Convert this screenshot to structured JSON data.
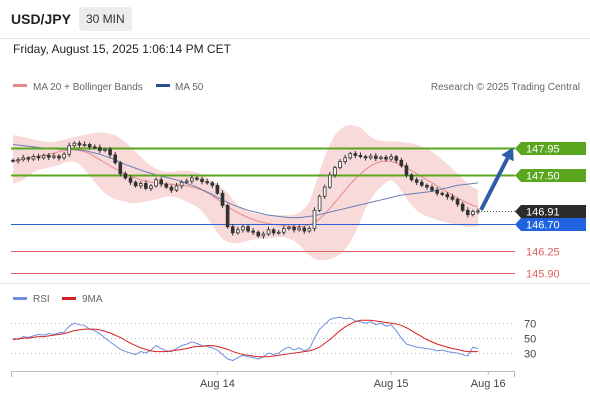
{
  "header": {
    "pair": "USD/JPY",
    "timeframe": "30 MIN",
    "datetime": "Friday, August 15, 2025 1:06:14 PM CET"
  },
  "legend": {
    "bollinger_label": "MA 20 + Bollinger Bands",
    "ma50_label": "MA 50",
    "copyright": "Research © 2025 Trading Central",
    "rsi_label": "RSI",
    "rsi_ma_label": "9MA"
  },
  "colors": {
    "up_level": "#5aa61e",
    "pivot": "#2b5fd6",
    "support": "#e06060",
    "candle": "#333333",
    "ma20": "#e88a8a",
    "band_fill": "#f8d3d3",
    "ma50": "#6a7fb3",
    "arrow": "#2f5ea8",
    "rsi": "#6f8ee0",
    "rsi_ma": "#d42020"
  },
  "chart_data": [
    {
      "type": "candlestick",
      "ylim": [
        145.7,
        148.4
      ],
      "price_levels": [
        {
          "value": 147.95,
          "label": "147.95",
          "kind": "resistance"
        },
        {
          "value": 147.5,
          "label": "147.50",
          "kind": "resistance"
        },
        {
          "value": 146.91,
          "label": "146.91",
          "kind": "last"
        },
        {
          "value": 146.7,
          "label": "146.70",
          "kind": "pivot"
        },
        {
          "value": 146.25,
          "label": "146.25",
          "kind": "support"
        },
        {
          "value": 145.9,
          "label": "145.90",
          "kind": "support"
        }
      ],
      "x_ticks": [
        "Aug 14",
        "Aug 15",
        "Aug 16"
      ],
      "x_tick_index": [
        40,
        74,
        93
      ],
      "close": [
        147.73,
        147.75,
        147.78,
        147.76,
        147.8,
        147.78,
        147.82,
        147.79,
        147.81,
        147.78,
        147.84,
        147.98,
        148.02,
        147.99,
        148.0,
        147.96,
        147.95,
        147.9,
        147.92,
        147.83,
        147.7,
        147.52,
        147.45,
        147.38,
        147.32,
        147.36,
        147.28,
        147.32,
        147.42,
        147.35,
        147.3,
        147.25,
        147.32,
        147.38,
        147.4,
        147.45,
        147.43,
        147.39,
        147.37,
        147.33,
        147.2,
        147.0,
        146.65,
        146.55,
        146.6,
        146.65,
        146.58,
        146.56,
        146.5,
        146.53,
        146.6,
        146.55,
        146.56,
        146.62,
        146.64,
        146.6,
        146.63,
        146.58,
        146.62,
        146.92,
        147.15,
        147.3,
        147.5,
        147.62,
        147.72,
        147.78,
        147.85,
        147.82,
        147.8,
        147.78,
        147.81,
        147.77,
        147.79,
        147.76,
        147.8,
        147.74,
        147.65,
        147.5,
        147.42,
        147.38,
        147.33,
        147.3,
        147.25,
        147.2,
        147.18,
        147.14,
        147.1,
        147.02,
        146.92,
        146.85,
        146.9,
        146.91
      ],
      "ma20": [
        147.72,
        147.74,
        147.76,
        147.78,
        147.8,
        147.81,
        147.82,
        147.84,
        147.86,
        147.88,
        147.9,
        147.91,
        147.91,
        147.9,
        147.88,
        147.85,
        147.8,
        147.75,
        147.7,
        147.65,
        147.6,
        147.56,
        147.52,
        147.48,
        147.45,
        147.42,
        147.4,
        147.38,
        147.37,
        147.36,
        147.35,
        147.35,
        147.34,
        147.33,
        147.32,
        147.3,
        147.28,
        147.25,
        147.21,
        147.16,
        147.1,
        147.04,
        146.98,
        146.93,
        146.88,
        146.84,
        146.8,
        146.77,
        146.74,
        146.72,
        146.7,
        146.69,
        146.68,
        146.67,
        146.66,
        146.65,
        146.65,
        146.66,
        146.68,
        146.72,
        146.78,
        146.86,
        146.95,
        147.05,
        147.15,
        147.25,
        147.35,
        147.44,
        147.52,
        147.59,
        147.65,
        147.69,
        147.72,
        147.73,
        147.72,
        147.7,
        147.66,
        147.62,
        147.57,
        147.52,
        147.47,
        147.42,
        147.37,
        147.32,
        147.27,
        147.22,
        147.17,
        147.12,
        147.08,
        147.04,
        147.0,
        146.98
      ],
      "band_upper": [
        148.15,
        148.14,
        148.12,
        148.1,
        148.08,
        148.06,
        148.05,
        148.04,
        148.04,
        148.06,
        148.08,
        148.1,
        148.12,
        148.14,
        148.16,
        148.18,
        148.19,
        148.2,
        148.19,
        148.18,
        148.15,
        148.1,
        148.04,
        147.96,
        147.88,
        147.8,
        147.72,
        147.65,
        147.6,
        147.57,
        147.55,
        147.55,
        147.56,
        147.57,
        147.57,
        147.56,
        147.54,
        147.5,
        147.45,
        147.4,
        147.35,
        147.28,
        147.2,
        147.1,
        147.0,
        146.94,
        146.9,
        146.88,
        146.86,
        146.85,
        146.84,
        146.84,
        146.84,
        146.84,
        146.84,
        146.85,
        146.88,
        146.95,
        147.05,
        147.3,
        147.55,
        147.8,
        148.0,
        148.15,
        148.25,
        148.3,
        148.32,
        148.3,
        148.28,
        148.2,
        148.12,
        148.08,
        148.06,
        148.05,
        148.05,
        148.05,
        148.04,
        148.03,
        148.02,
        148.0,
        147.97,
        147.93,
        147.88,
        147.82,
        147.75,
        147.68,
        147.6,
        147.52,
        147.44,
        147.36,
        147.3,
        147.25
      ],
      "band_lower": [
        147.35,
        147.38,
        147.42,
        147.48,
        147.54,
        147.58,
        147.6,
        147.62,
        147.64,
        147.66,
        147.7,
        147.72,
        147.72,
        147.68,
        147.58,
        147.48,
        147.38,
        147.28,
        147.2,
        147.14,
        147.1,
        147.08,
        147.06,
        147.04,
        147.04,
        147.05,
        147.06,
        147.08,
        147.1,
        147.12,
        147.14,
        147.15,
        147.13,
        147.1,
        147.06,
        147.02,
        146.98,
        146.9,
        146.8,
        146.68,
        146.55,
        146.45,
        146.4,
        146.38,
        146.38,
        146.4,
        146.42,
        146.44,
        146.45,
        146.45,
        146.46,
        146.47,
        146.48,
        146.48,
        146.46,
        146.42,
        146.35,
        146.26,
        146.18,
        146.12,
        146.1,
        146.1,
        146.12,
        146.15,
        146.2,
        146.28,
        146.4,
        146.55,
        146.75,
        146.95,
        147.1,
        147.22,
        147.3,
        147.38,
        147.42,
        147.36,
        147.24,
        147.12,
        147.0,
        146.92,
        146.86,
        146.82,
        146.79,
        146.76,
        146.74,
        146.72,
        146.7,
        146.68,
        146.66,
        146.64,
        146.65,
        146.66
      ],
      "ma50": [
        148.0,
        147.99,
        147.98,
        147.97,
        147.96,
        147.95,
        147.94,
        147.93,
        147.93,
        147.92,
        147.92,
        147.92,
        147.92,
        147.91,
        147.9,
        147.88,
        147.86,
        147.84,
        147.81,
        147.78,
        147.75,
        147.71,
        147.67,
        147.64,
        147.61,
        147.58,
        147.55,
        147.53,
        147.5,
        147.48,
        147.46,
        147.44,
        147.42,
        147.39,
        147.36,
        147.33,
        147.3,
        147.26,
        147.22,
        147.18,
        147.13,
        147.09,
        147.05,
        147.01,
        146.98,
        146.95,
        146.92,
        146.9,
        146.88,
        146.86,
        146.84,
        146.83,
        146.82,
        146.81,
        146.8,
        146.8,
        146.8,
        146.81,
        146.82,
        146.83,
        146.85,
        146.87,
        146.89,
        146.91,
        146.93,
        146.95,
        146.97,
        146.99,
        147.01,
        147.03,
        147.05,
        147.07,
        147.09,
        147.11,
        147.13,
        147.15,
        147.17,
        147.18,
        147.19,
        147.2,
        147.21,
        147.22,
        147.23,
        147.25,
        147.27,
        147.29,
        147.31,
        147.33,
        147.34,
        147.35,
        147.36,
        147.37
      ],
      "forecast": {
        "from": 146.91,
        "to": 147.95
      }
    },
    {
      "type": "line",
      "ylim": [
        10,
        85
      ],
      "y_ticks": [
        70,
        50,
        30
      ],
      "series": [
        {
          "name": "RSI",
          "values": [
            50,
            48,
            52,
            51,
            53,
            55,
            54,
            56,
            55,
            57,
            58,
            66,
            70,
            68,
            67,
            62,
            60,
            56,
            50,
            45,
            40,
            35,
            32,
            30,
            28,
            32,
            30,
            34,
            40,
            36,
            33,
            32,
            36,
            40,
            42,
            45,
            43,
            40,
            39,
            37,
            34,
            28,
            22,
            20,
            24,
            27,
            25,
            24,
            22,
            25,
            30,
            28,
            30,
            35,
            38,
            34,
            37,
            33,
            36,
            50,
            62,
            68,
            75,
            77,
            78,
            76,
            77,
            73,
            72,
            70,
            72,
            68,
            70,
            66,
            68,
            60,
            50,
            42,
            40,
            38,
            37,
            36,
            35,
            33,
            34,
            32,
            31,
            30,
            28,
            26,
            38,
            36
          ]
        },
        {
          "name": "9MA",
          "values": [
            48,
            49,
            50,
            50,
            51,
            52,
            52,
            53,
            54,
            55,
            56,
            58,
            60,
            61,
            62,
            62,
            62,
            61,
            59,
            57,
            54,
            51,
            47,
            43,
            40,
            37,
            35,
            33,
            32,
            32,
            32,
            33,
            34,
            35,
            36,
            38,
            39,
            39,
            40,
            40,
            39,
            37,
            35,
            32,
            30,
            28,
            27,
            26,
            25,
            25,
            25,
            26,
            27,
            28,
            29,
            30,
            31,
            32,
            33,
            35,
            38,
            43,
            48,
            54,
            60,
            65,
            69,
            72,
            74,
            74,
            74,
            73,
            72,
            71,
            70,
            69,
            67,
            64,
            60,
            56,
            52,
            48,
            45,
            42,
            40,
            38,
            36,
            35,
            33,
            32,
            32,
            32
          ]
        }
      ]
    }
  ]
}
